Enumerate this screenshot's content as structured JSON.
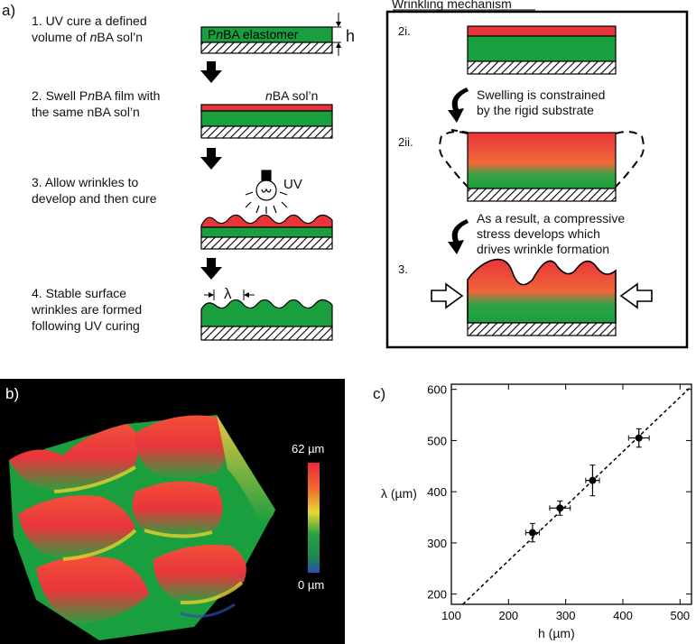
{
  "panel_a": {
    "label": "a)",
    "steps": [
      {
        "line1": "1. UV cure a defined",
        "line2_pre": "volume of ",
        "line2_it": "n",
        "line2_post": "BA sol’n"
      },
      {
        "line1_pre": "2. Swell P",
        "line1_it": "n",
        "line1_post": "BA film with",
        "line2": "the same nBA sol’n"
      },
      {
        "line1": "3. Allow wrinkles to",
        "line2": "develop and then cure"
      },
      {
        "line1": "4. Stable surface",
        "line2": "wrinkles are formed",
        "line3": "following UV curing"
      }
    ],
    "film_label_pre": "P",
    "film_label_it": "n",
    "film_label_post": "BA elastomer",
    "thickness_label": "h",
    "sol_label_it": "n",
    "sol_label_post": "BA sol’n",
    "uv_label": "UV",
    "lambda_symbol": "λ"
  },
  "mechanism": {
    "title": "Wrinkling mechanism",
    "stage1": "2i.",
    "stage2": "2ii.",
    "stage3": "3.",
    "text1": [
      "Swelling is constrained",
      "by the rigid substrate"
    ],
    "text2": [
      "As a result, a compressive",
      "stress develops which",
      "drives wrinkle formation"
    ]
  },
  "panel_b": {
    "label": "b)",
    "scale_max": "62 µm",
    "scale_min": "0 µm"
  },
  "panel_c": {
    "label": "c)"
  },
  "colors": {
    "red": "#e8353b",
    "green": "#1a9f3f",
    "black": "#000000"
  },
  "chart_data": {
    "type": "scatter",
    "xlabel": "h (µm)",
    "ylabel": "λ (µm)",
    "xlim": [
      100,
      520
    ],
    "ylim": [
      180,
      610
    ],
    "xticks": [
      100,
      200,
      300,
      400,
      500
    ],
    "yticks": [
      200,
      300,
      400,
      500,
      600
    ],
    "points": [
      {
        "x": 242,
        "y": 320,
        "xerr": 12,
        "yerr": 18
      },
      {
        "x": 290,
        "y": 368,
        "xerr": 18,
        "yerr": 14
      },
      {
        "x": 347,
        "y": 422,
        "xerr": 12,
        "yerr": 30
      },
      {
        "x": 428,
        "y": 505,
        "xerr": 18,
        "yerr": 18
      }
    ],
    "fit_line": {
      "x": [
        120,
        520
      ],
      "y": [
        180,
        606
      ]
    },
    "grid": false
  }
}
